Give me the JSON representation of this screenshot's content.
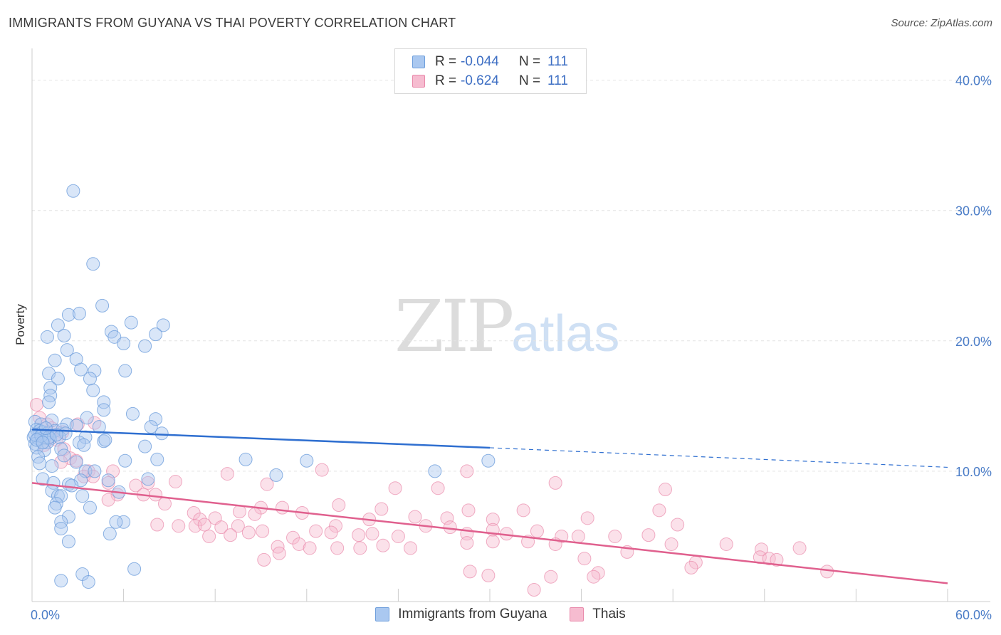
{
  "header": {
    "title": "IMMIGRANTS FROM GUYANA VS THAI POVERTY CORRELATION CHART",
    "source": "Source: ZipAtlas.com"
  },
  "watermark": {
    "zip": "ZIP",
    "atlas": "atlas"
  },
  "legend": {
    "rows": [
      {
        "r_label": "R =",
        "r_value": "-0.044",
        "n_label": "N =",
        "n_value": "111"
      },
      {
        "r_label": "R =",
        "r_value": "-0.624",
        "n_label": "N =",
        "n_value": "111"
      }
    ]
  },
  "bottom_legend": [
    "Immigrants from Guyana",
    "Thais"
  ],
  "colors": {
    "blue_fill": "#aac8f0",
    "blue_stroke": "#6f9fdc",
    "blue_line": "#2f6fd0",
    "pink_fill": "#f6bcd0",
    "pink_stroke": "#e98aab",
    "pink_line": "#e0608e",
    "grid": "#e3e3e3",
    "tick_label": "#4a7cc7"
  },
  "chart_data": {
    "type": "scatter",
    "title": "IMMIGRANTS FROM GUYANA VS THAI POVERTY CORRELATION CHART",
    "xlabel": "",
    "ylabel": "Poverty",
    "xlim": [
      0,
      60
    ],
    "ylim": [
      0,
      42
    ],
    "x_tick_labels": [
      "0.0%",
      "60.0%"
    ],
    "y_ticks": [
      10,
      20,
      30,
      40
    ],
    "y_tick_labels": [
      "10.0%",
      "20.0%",
      "30.0%",
      "40.0%"
    ],
    "grid": true,
    "legend_position": "top-center",
    "series": [
      {
        "name": "Immigrants from Guyana",
        "R": -0.044,
        "N": 111,
        "trend": {
          "x": [
            0,
            30
          ],
          "y": [
            13.2,
            11.8
          ],
          "dashed_to": [
            60,
            10.3
          ]
        },
        "points": [
          [
            2.7,
            31.5
          ],
          [
            4.0,
            25.9
          ],
          [
            4.6,
            22.7
          ],
          [
            2.4,
            22.0
          ],
          [
            3.1,
            22.1
          ],
          [
            1.7,
            21.2
          ],
          [
            6.5,
            21.4
          ],
          [
            8.6,
            21.2
          ],
          [
            1.0,
            20.3
          ],
          [
            2.1,
            20.4
          ],
          [
            5.2,
            20.7
          ],
          [
            5.4,
            20.3
          ],
          [
            6.0,
            19.8
          ],
          [
            7.4,
            19.6
          ],
          [
            8.1,
            20.5
          ],
          [
            2.3,
            19.3
          ],
          [
            1.5,
            18.5
          ],
          [
            2.9,
            18.6
          ],
          [
            3.2,
            17.8
          ],
          [
            4.1,
            17.7
          ],
          [
            6.1,
            17.7
          ],
          [
            1.1,
            17.5
          ],
          [
            1.7,
            17.1
          ],
          [
            3.8,
            17.1
          ],
          [
            1.2,
            16.4
          ],
          [
            4.0,
            16.2
          ],
          [
            1.2,
            15.8
          ],
          [
            4.7,
            15.3
          ],
          [
            1.1,
            15.3
          ],
          [
            4.7,
            14.7
          ],
          [
            6.6,
            14.4
          ],
          [
            3.6,
            14.1
          ],
          [
            8.1,
            14.0
          ],
          [
            0.2,
            13.8
          ],
          [
            0.6,
            13.6
          ],
          [
            1.3,
            13.9
          ],
          [
            2.3,
            13.6
          ],
          [
            2.9,
            13.5
          ],
          [
            4.4,
            13.4
          ],
          [
            7.8,
            13.4
          ],
          [
            0.3,
            13.2
          ],
          [
            0.5,
            13.1
          ],
          [
            0.7,
            13.0
          ],
          [
            1.0,
            12.9
          ],
          [
            1.5,
            13.1
          ],
          [
            2.0,
            13.2
          ],
          [
            8.5,
            12.9
          ],
          [
            0.1,
            12.6
          ],
          [
            0.4,
            12.5
          ],
          [
            0.8,
            12.6
          ],
          [
            1.2,
            12.5
          ],
          [
            1.8,
            12.6
          ],
          [
            3.5,
            12.6
          ],
          [
            4.7,
            12.3
          ],
          [
            0.2,
            12.1
          ],
          [
            1.0,
            12.2
          ],
          [
            3.1,
            12.2
          ],
          [
            3.4,
            12.0
          ],
          [
            0.3,
            11.8
          ],
          [
            0.8,
            11.6
          ],
          [
            1.9,
            11.7
          ],
          [
            4.8,
            12.4
          ],
          [
            7.4,
            11.9
          ],
          [
            2.1,
            11.2
          ],
          [
            0.4,
            11.1
          ],
          [
            6.1,
            10.8
          ],
          [
            2.9,
            10.7
          ],
          [
            8.2,
            10.9
          ],
          [
            14.0,
            10.9
          ],
          [
            18.0,
            10.8
          ],
          [
            0.5,
            10.6
          ],
          [
            1.3,
            10.4
          ],
          [
            3.5,
            10.0
          ],
          [
            4.1,
            10.0
          ],
          [
            26.4,
            10.0
          ],
          [
            29.9,
            10.8
          ],
          [
            16.0,
            9.7
          ],
          [
            3.2,
            9.3
          ],
          [
            5.0,
            9.3
          ],
          [
            7.6,
            9.4
          ],
          [
            0.7,
            9.4
          ],
          [
            1.4,
            9.1
          ],
          [
            2.4,
            9.0
          ],
          [
            2.6,
            8.9
          ],
          [
            1.3,
            8.5
          ],
          [
            5.7,
            8.4
          ],
          [
            1.7,
            8.1
          ],
          [
            1.9,
            8.1
          ],
          [
            3.3,
            8.1
          ],
          [
            1.6,
            7.5
          ],
          [
            1.5,
            7.2
          ],
          [
            3.8,
            7.2
          ],
          [
            2.4,
            6.5
          ],
          [
            6.0,
            6.1
          ],
          [
            5.5,
            6.1
          ],
          [
            1.9,
            6.1
          ],
          [
            1.9,
            5.6
          ],
          [
            5.1,
            5.2
          ],
          [
            2.4,
            4.6
          ],
          [
            6.7,
            2.5
          ],
          [
            3.3,
            2.1
          ],
          [
            1.9,
            1.6
          ],
          [
            3.7,
            1.5
          ],
          [
            0.2,
            12.8
          ],
          [
            0.6,
            12.7
          ],
          [
            1.1,
            12.6
          ],
          [
            0.9,
            13.3
          ],
          [
            0.3,
            12.4
          ],
          [
            2.2,
            12.9
          ],
          [
            0.7,
            12.2
          ],
          [
            1.6,
            12.8
          ]
        ]
      },
      {
        "name": "Thais",
        "R": -0.624,
        "N": 111,
        "trend": {
          "x": [
            0,
            60
          ],
          "y": [
            9.1,
            1.4
          ]
        },
        "points": [
          [
            0.3,
            15.1
          ],
          [
            0.5,
            14.1
          ],
          [
            1.0,
            13.6
          ],
          [
            1.3,
            13.3
          ],
          [
            2.0,
            13.0
          ],
          [
            3.0,
            13.6
          ],
          [
            4.1,
            13.7
          ],
          [
            1.6,
            12.4
          ],
          [
            2.1,
            11.7
          ],
          [
            2.5,
            11.0
          ],
          [
            1.9,
            10.7
          ],
          [
            2.9,
            10.8
          ],
          [
            0.8,
            12.0
          ],
          [
            3.7,
            10.0
          ],
          [
            3.4,
            9.6
          ],
          [
            4.0,
            9.6
          ],
          [
            5.3,
            10.0
          ],
          [
            5.0,
            9.1
          ],
          [
            7.6,
            9.1
          ],
          [
            9.4,
            9.2
          ],
          [
            6.8,
            8.9
          ],
          [
            12.8,
            9.8
          ],
          [
            15.4,
            9.0
          ],
          [
            19.0,
            10.1
          ],
          [
            23.8,
            8.7
          ],
          [
            26.6,
            8.7
          ],
          [
            28.5,
            10.0
          ],
          [
            34.3,
            9.1
          ],
          [
            41.5,
            8.6
          ],
          [
            5.6,
            8.2
          ],
          [
            7.3,
            8.2
          ],
          [
            8.1,
            8.2
          ],
          [
            5.0,
            7.8
          ],
          [
            8.7,
            7.5
          ],
          [
            15.0,
            7.2
          ],
          [
            16.4,
            7.2
          ],
          [
            10.6,
            6.8
          ],
          [
            12.0,
            6.4
          ],
          [
            14.6,
            6.7
          ],
          [
            11.0,
            6.3
          ],
          [
            17.7,
            6.8
          ],
          [
            20.1,
            7.4
          ],
          [
            22.1,
            6.3
          ],
          [
            25.1,
            6.5
          ],
          [
            27.2,
            6.4
          ],
          [
            28.6,
            7.0
          ],
          [
            30.2,
            6.3
          ],
          [
            32.2,
            7.0
          ],
          [
            36.4,
            6.4
          ],
          [
            41.1,
            7.0
          ],
          [
            9.6,
            5.8
          ],
          [
            10.7,
            5.8
          ],
          [
            11.3,
            5.9
          ],
          [
            12.4,
            5.7
          ],
          [
            13.5,
            5.8
          ],
          [
            15.1,
            5.4
          ],
          [
            18.6,
            5.4
          ],
          [
            19.9,
            5.8
          ],
          [
            21.4,
            5.1
          ],
          [
            22.3,
            5.2
          ],
          [
            24.0,
            5.0
          ],
          [
            25.8,
            5.8
          ],
          [
            27.4,
            5.7
          ],
          [
            28.5,
            5.2
          ],
          [
            30.2,
            5.5
          ],
          [
            31.1,
            5.2
          ],
          [
            33.1,
            5.4
          ],
          [
            34.7,
            5.0
          ],
          [
            35.8,
            5.0
          ],
          [
            38.2,
            5.0
          ],
          [
            40.4,
            5.1
          ],
          [
            42.3,
            5.9
          ],
          [
            8.2,
            5.9
          ],
          [
            13.0,
            5.1
          ],
          [
            14.2,
            5.3
          ],
          [
            11.6,
            5.0
          ],
          [
            17.1,
            4.9
          ],
          [
            16.1,
            4.2
          ],
          [
            17.5,
            4.4
          ],
          [
            18.2,
            4.1
          ],
          [
            20.0,
            4.1
          ],
          [
            21.5,
            4.1
          ],
          [
            23.0,
            4.3
          ],
          [
            24.8,
            4.1
          ],
          [
            28.5,
            4.5
          ],
          [
            30.2,
            4.6
          ],
          [
            32.5,
            4.6
          ],
          [
            34.3,
            4.4
          ],
          [
            41.9,
            4.4
          ],
          [
            47.8,
            4.0
          ],
          [
            16.2,
            3.7
          ],
          [
            15.2,
            3.2
          ],
          [
            36.2,
            3.3
          ],
          [
            39.0,
            3.8
          ],
          [
            43.5,
            3.0
          ],
          [
            43.2,
            2.6
          ],
          [
            45.5,
            4.4
          ],
          [
            47.7,
            3.4
          ],
          [
            48.3,
            3.3
          ],
          [
            48.8,
            3.2
          ],
          [
            50.3,
            4.1
          ],
          [
            52.1,
            2.3
          ],
          [
            28.7,
            2.3
          ],
          [
            29.9,
            2.0
          ],
          [
            34.0,
            1.9
          ],
          [
            37.1,
            2.2
          ],
          [
            36.8,
            1.9
          ],
          [
            32.9,
            0.9
          ],
          [
            13.6,
            6.9
          ],
          [
            19.6,
            5.3
          ],
          [
            22.9,
            7.1
          ]
        ]
      }
    ]
  }
}
